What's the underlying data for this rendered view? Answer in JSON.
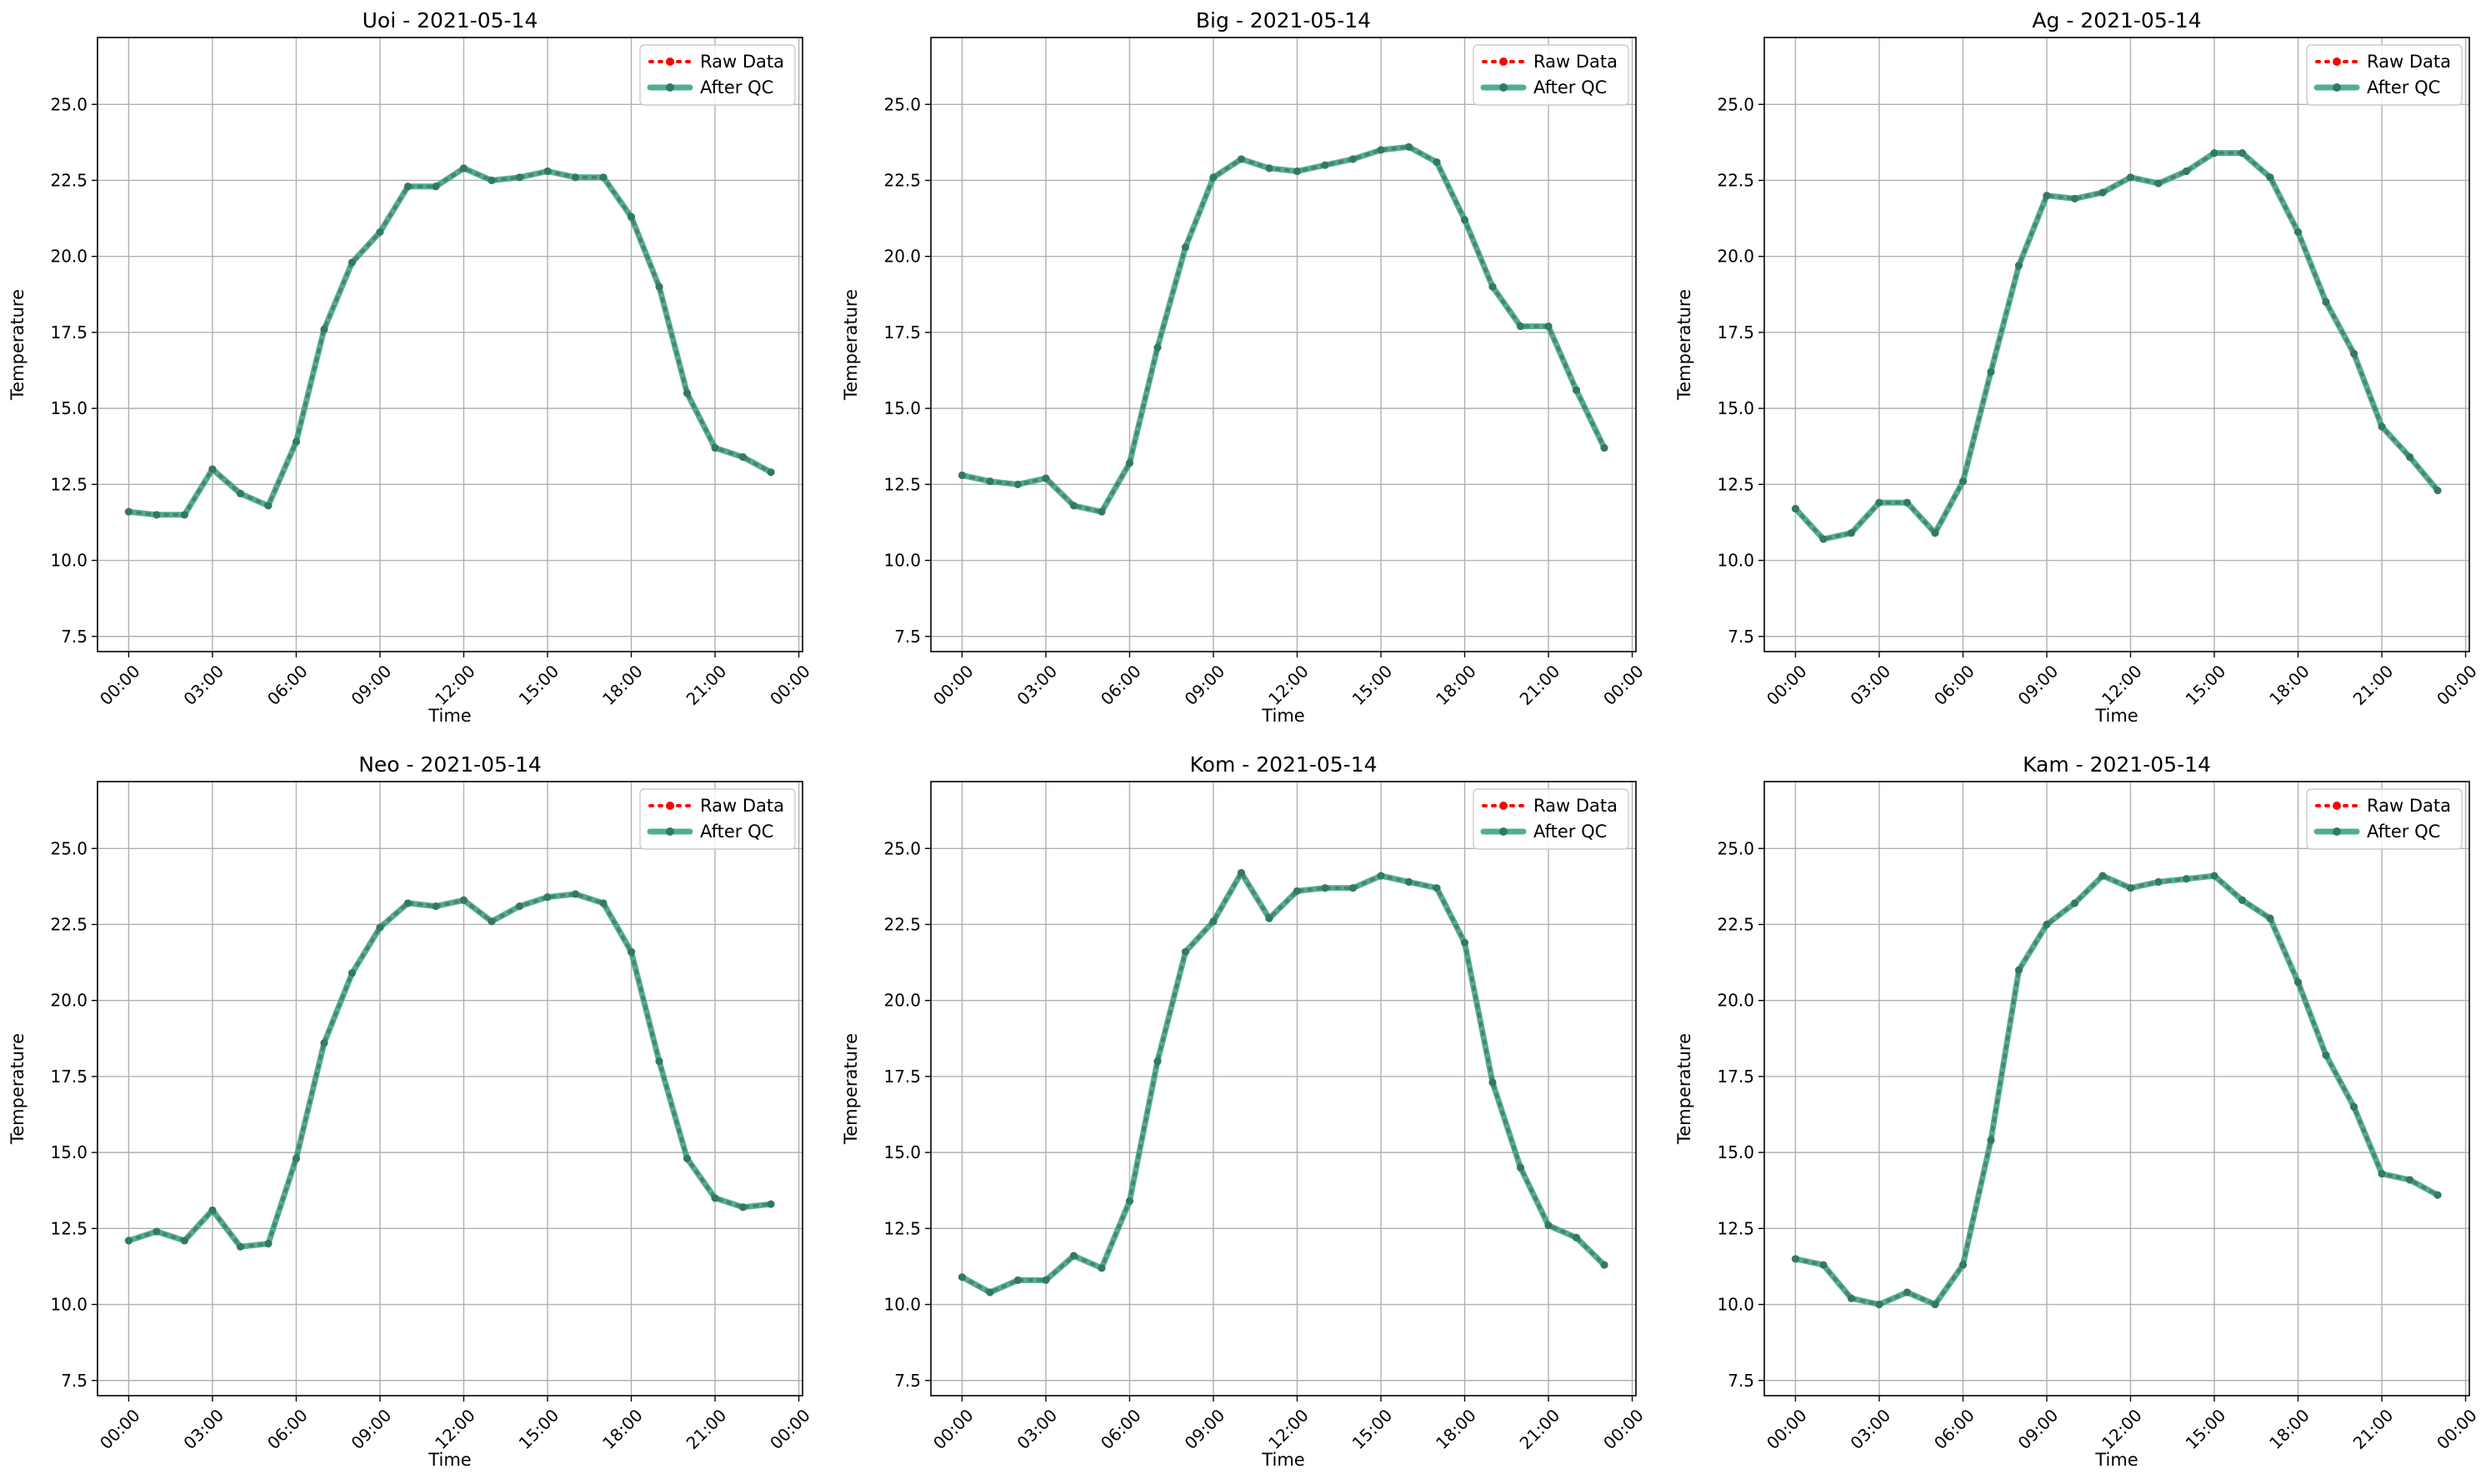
{
  "figure": {
    "background": "#ffffff"
  },
  "colors": {
    "raw": "#ff0000",
    "qc": "#2a9d7f",
    "grid": "#b0b0b0",
    "axes": "#000000",
    "legend_border": "#cccccc"
  },
  "legend": {
    "entries": [
      "Raw Data",
      "After QC"
    ],
    "placement": "upper right"
  },
  "chart_data": [
    {
      "type": "line",
      "title": "Uoi - 2021-05-14",
      "xlabel": "Time",
      "ylabel": "Temperature",
      "xlim": [
        "2021-05-14 00:00",
        "2021-05-15 00:00"
      ],
      "ylim": [
        7.0,
        27.2
      ],
      "grid": true,
      "xticks": [
        "00:00",
        "03:00",
        "06:00",
        "09:00",
        "12:00",
        "15:00",
        "18:00",
        "21:00",
        "00:00"
      ],
      "yticks": [
        "7.5",
        "10.0",
        "12.5",
        "15.0",
        "17.5",
        "20.0",
        "22.5",
        "25.0"
      ],
      "x": [
        "00:00",
        "01:00",
        "02:00",
        "03:00",
        "04:00",
        "05:00",
        "06:00",
        "07:00",
        "08:00",
        "09:00",
        "10:00",
        "11:00",
        "12:00",
        "13:00",
        "14:00",
        "15:00",
        "16:00",
        "17:00",
        "18:00",
        "19:00",
        "20:00",
        "21:00",
        "22:00",
        "23:00"
      ],
      "series": [
        {
          "name": "Raw Data",
          "values": [
            11.6,
            11.5,
            11.5,
            13.0,
            12.2,
            11.8,
            13.9,
            17.6,
            19.8,
            20.8,
            22.3,
            22.3,
            22.9,
            22.5,
            22.6,
            22.8,
            22.6,
            22.6,
            21.3,
            19.0,
            15.5,
            13.7,
            13.4,
            12.9
          ]
        },
        {
          "name": "After QC",
          "values": [
            11.6,
            11.5,
            11.5,
            13.0,
            12.2,
            11.8,
            13.9,
            17.6,
            19.8,
            20.8,
            22.3,
            22.3,
            22.9,
            22.5,
            22.6,
            22.8,
            22.6,
            22.6,
            21.3,
            19.0,
            15.5,
            13.7,
            13.4,
            12.9
          ]
        }
      ]
    },
    {
      "type": "line",
      "title": "Big - 2021-05-14",
      "xlabel": "Time",
      "ylabel": "Temperature",
      "xlim": [
        "2021-05-14 00:00",
        "2021-05-15 00:00"
      ],
      "ylim": [
        7.0,
        27.2
      ],
      "grid": true,
      "xticks": [
        "00:00",
        "03:00",
        "06:00",
        "09:00",
        "12:00",
        "15:00",
        "18:00",
        "21:00",
        "00:00"
      ],
      "yticks": [
        "7.5",
        "10.0",
        "12.5",
        "15.0",
        "17.5",
        "20.0",
        "22.5",
        "25.0"
      ],
      "x": [
        "00:00",
        "01:00",
        "02:00",
        "03:00",
        "04:00",
        "05:00",
        "06:00",
        "07:00",
        "08:00",
        "09:00",
        "10:00",
        "11:00",
        "12:00",
        "13:00",
        "14:00",
        "15:00",
        "16:00",
        "17:00",
        "18:00",
        "19:00",
        "20:00",
        "21:00",
        "22:00",
        "23:00"
      ],
      "series": [
        {
          "name": "Raw Data",
          "values": [
            12.8,
            12.6,
            12.5,
            12.7,
            11.8,
            11.6,
            13.2,
            17.0,
            20.3,
            22.6,
            23.2,
            22.9,
            22.8,
            23.0,
            23.2,
            23.5,
            23.6,
            23.1,
            21.2,
            19.0,
            17.7,
            17.7,
            15.6,
            13.7
          ]
        },
        {
          "name": "After QC",
          "values": [
            12.8,
            12.6,
            12.5,
            12.7,
            11.8,
            11.6,
            13.2,
            17.0,
            20.3,
            22.6,
            23.2,
            22.9,
            22.8,
            23.0,
            23.2,
            23.5,
            23.6,
            23.1,
            21.2,
            19.0,
            17.7,
            17.7,
            15.6,
            13.7
          ]
        }
      ]
    },
    {
      "type": "line",
      "title": "Ag - 2021-05-14",
      "xlabel": "Time",
      "ylabel": "Temperature",
      "xlim": [
        "2021-05-14 00:00",
        "2021-05-15 00:00"
      ],
      "ylim": [
        7.0,
        27.2
      ],
      "grid": true,
      "xticks": [
        "00:00",
        "03:00",
        "06:00",
        "09:00",
        "12:00",
        "15:00",
        "18:00",
        "21:00",
        "00:00"
      ],
      "yticks": [
        "7.5",
        "10.0",
        "12.5",
        "15.0",
        "17.5",
        "20.0",
        "22.5",
        "25.0"
      ],
      "x": [
        "00:00",
        "01:00",
        "02:00",
        "03:00",
        "04:00",
        "05:00",
        "06:00",
        "07:00",
        "08:00",
        "09:00",
        "10:00",
        "11:00",
        "12:00",
        "13:00",
        "14:00",
        "15:00",
        "16:00",
        "17:00",
        "18:00",
        "19:00",
        "20:00",
        "21:00",
        "22:00",
        "23:00"
      ],
      "series": [
        {
          "name": "Raw Data",
          "values": [
            11.7,
            10.7,
            10.9,
            11.9,
            11.9,
            10.9,
            12.6,
            16.2,
            19.7,
            22.0,
            21.9,
            22.1,
            22.6,
            22.4,
            22.8,
            23.4,
            23.4,
            22.6,
            20.8,
            18.5,
            16.8,
            14.4,
            13.4,
            12.3
          ]
        },
        {
          "name": "After QC",
          "values": [
            11.7,
            10.7,
            10.9,
            11.9,
            11.9,
            10.9,
            12.6,
            16.2,
            19.7,
            22.0,
            21.9,
            22.1,
            22.6,
            22.4,
            22.8,
            23.4,
            23.4,
            22.6,
            20.8,
            18.5,
            16.8,
            14.4,
            13.4,
            12.3
          ]
        }
      ]
    },
    {
      "type": "line",
      "title": "Neo - 2021-05-14",
      "xlabel": "Time",
      "ylabel": "Temperature",
      "xlim": [
        "2021-05-14 00:00",
        "2021-05-15 00:00"
      ],
      "ylim": [
        7.0,
        27.2
      ],
      "grid": true,
      "xticks": [
        "00:00",
        "03:00",
        "06:00",
        "09:00",
        "12:00",
        "15:00",
        "18:00",
        "21:00",
        "00:00"
      ],
      "yticks": [
        "7.5",
        "10.0",
        "12.5",
        "15.0",
        "17.5",
        "20.0",
        "22.5",
        "25.0"
      ],
      "x": [
        "00:00",
        "01:00",
        "02:00",
        "03:00",
        "04:00",
        "05:00",
        "06:00",
        "07:00",
        "08:00",
        "09:00",
        "10:00",
        "11:00",
        "12:00",
        "13:00",
        "14:00",
        "15:00",
        "16:00",
        "17:00",
        "18:00",
        "19:00",
        "20:00",
        "21:00",
        "22:00",
        "23:00"
      ],
      "series": [
        {
          "name": "Raw Data",
          "values": [
            12.1,
            12.4,
            12.1,
            13.1,
            11.9,
            12.0,
            14.8,
            18.6,
            20.9,
            22.4,
            23.2,
            23.1,
            23.3,
            22.6,
            23.1,
            23.4,
            23.5,
            23.2,
            21.6,
            18.0,
            14.8,
            13.5,
            13.2,
            13.3
          ]
        },
        {
          "name": "After QC",
          "values": [
            12.1,
            12.4,
            12.1,
            13.1,
            11.9,
            12.0,
            14.8,
            18.6,
            20.9,
            22.4,
            23.2,
            23.1,
            23.3,
            22.6,
            23.1,
            23.4,
            23.5,
            23.2,
            21.6,
            18.0,
            14.8,
            13.5,
            13.2,
            13.3
          ]
        }
      ]
    },
    {
      "type": "line",
      "title": "Kom - 2021-05-14",
      "xlabel": "Time",
      "ylabel": "Temperature",
      "xlim": [
        "2021-05-14 00:00",
        "2021-05-15 00:00"
      ],
      "ylim": [
        7.0,
        27.2
      ],
      "grid": true,
      "xticks": [
        "00:00",
        "03:00",
        "06:00",
        "09:00",
        "12:00",
        "15:00",
        "18:00",
        "21:00",
        "00:00"
      ],
      "yticks": [
        "7.5",
        "10.0",
        "12.5",
        "15.0",
        "17.5",
        "20.0",
        "22.5",
        "25.0"
      ],
      "x": [
        "00:00",
        "01:00",
        "02:00",
        "03:00",
        "04:00",
        "05:00",
        "06:00",
        "07:00",
        "08:00",
        "09:00",
        "10:00",
        "11:00",
        "12:00",
        "13:00",
        "14:00",
        "15:00",
        "16:00",
        "17:00",
        "18:00",
        "19:00",
        "20:00",
        "21:00",
        "22:00",
        "23:00"
      ],
      "series": [
        {
          "name": "Raw Data",
          "values": [
            10.9,
            10.4,
            10.8,
            10.8,
            11.6,
            11.2,
            13.4,
            18.0,
            21.6,
            22.6,
            24.2,
            22.7,
            23.6,
            23.7,
            23.7,
            24.1,
            23.9,
            23.7,
            21.9,
            17.3,
            14.5,
            12.6,
            12.2,
            11.3
          ]
        },
        {
          "name": "After QC",
          "values": [
            10.9,
            10.4,
            10.8,
            10.8,
            11.6,
            11.2,
            13.4,
            18.0,
            21.6,
            22.6,
            24.2,
            22.7,
            23.6,
            23.7,
            23.7,
            24.1,
            23.9,
            23.7,
            21.9,
            17.3,
            14.5,
            12.6,
            12.2,
            11.3
          ]
        }
      ]
    },
    {
      "type": "line",
      "title": "Kam - 2021-05-14",
      "xlabel": "Time",
      "ylabel": "Temperature",
      "xlim": [
        "2021-05-14 00:00",
        "2021-05-15 00:00"
      ],
      "ylim": [
        7.0,
        27.2
      ],
      "grid": true,
      "xticks": [
        "00:00",
        "03:00",
        "06:00",
        "09:00",
        "12:00",
        "15:00",
        "18:00",
        "21:00",
        "00:00"
      ],
      "yticks": [
        "7.5",
        "10.0",
        "12.5",
        "15.0",
        "17.5",
        "20.0",
        "22.5",
        "25.0"
      ],
      "x": [
        "00:00",
        "01:00",
        "02:00",
        "03:00",
        "04:00",
        "05:00",
        "06:00",
        "07:00",
        "08:00",
        "09:00",
        "10:00",
        "11:00",
        "12:00",
        "13:00",
        "14:00",
        "15:00",
        "16:00",
        "17:00",
        "18:00",
        "19:00",
        "20:00",
        "21:00",
        "22:00",
        "23:00"
      ],
      "series": [
        {
          "name": "Raw Data",
          "values": [
            11.5,
            11.3,
            10.2,
            10.0,
            10.4,
            10.0,
            11.3,
            15.4,
            21.0,
            22.5,
            23.2,
            24.1,
            23.7,
            23.9,
            24.0,
            24.1,
            23.3,
            22.7,
            20.6,
            18.2,
            16.5,
            14.3,
            14.1,
            13.6
          ]
        },
        {
          "name": "After QC",
          "values": [
            11.5,
            11.3,
            10.2,
            10.0,
            10.4,
            10.0,
            11.3,
            15.4,
            21.0,
            22.5,
            23.2,
            24.1,
            23.7,
            23.9,
            24.0,
            24.1,
            23.3,
            22.7,
            20.6,
            18.2,
            16.5,
            14.3,
            14.1,
            13.6
          ]
        }
      ]
    }
  ]
}
